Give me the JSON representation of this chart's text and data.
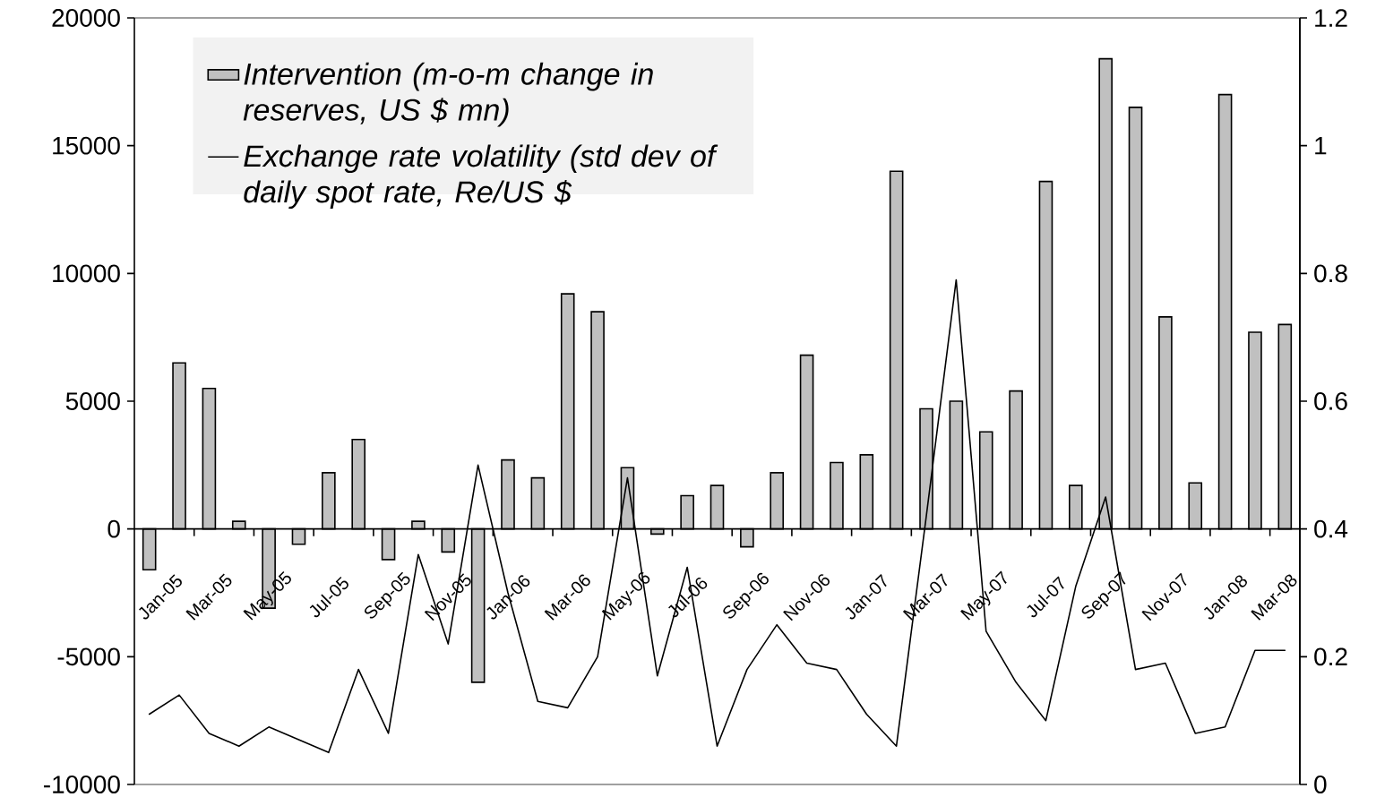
{
  "chart_data": {
    "type": "bar",
    "categories": [
      "Jan-05",
      null,
      "Mar-05",
      null,
      "May-05",
      null,
      "Jul-05",
      null,
      "Sep-05",
      null,
      "Nov-05",
      null,
      "Jan-06",
      null,
      "Mar-06",
      null,
      "May-06",
      null,
      "Jul-06",
      null,
      "Sep-06",
      null,
      "Nov-06",
      null,
      "Jan-07",
      null,
      "Mar-07",
      null,
      "May-07",
      null,
      "Jul-07",
      null,
      "Sep-07",
      null,
      "Nov-07",
      null,
      "Jan-08",
      null,
      "Mar-08"
    ],
    "series": [
      {
        "name": "*Intervention (m-o-m change in reserves, US $ mn)*",
        "color": "#c0c0c0",
        "values": [
          -1600,
          6500,
          5500,
          300,
          -3100,
          -600,
          2200,
          3500,
          -1200,
          300,
          -900,
          -6000,
          2700,
          2000,
          9200,
          8500,
          2400,
          -200,
          1300,
          1700,
          -700,
          2200,
          6800,
          2600,
          2900,
          14000,
          4700,
          5000,
          3800,
          5400,
          13600,
          1700,
          18400,
          16500,
          8300,
          1800,
          17000,
          7700,
          8000
        ]
      },
      {
        "name": "*Exchange rate volatility (std dev of daily spot rate, Re/US $*",
        "type": "line",
        "axis": "y2",
        "color": "#000000",
        "values": [
          0.11,
          0.14,
          0.08,
          0.06,
          0.09,
          0.07,
          0.05,
          0.18,
          0.08,
          0.36,
          0.22,
          0.5,
          0.3,
          0.13,
          0.12,
          0.2,
          0.48,
          0.17,
          0.34,
          0.06,
          0.18,
          0.25,
          0.19,
          0.18,
          0.11,
          0.06,
          0.42,
          0.79,
          0.24,
          0.16,
          0.1,
          0.31,
          0.45,
          0.18,
          0.19,
          0.08,
          0.09,
          0.21,
          0.21
        ]
      }
    ],
    "ylim": [
      -10000,
      20000
    ],
    "yticks": [
      -10000,
      -5000,
      0,
      5000,
      10000,
      15000,
      20000
    ],
    "y2lim": [
      0,
      1.2
    ],
    "y2ticks": [
      0,
      0.2,
      0.4,
      0.6,
      0.8,
      1,
      1.2
    ],
    "legend": "top left",
    "grid": false,
    "marker": "none"
  }
}
